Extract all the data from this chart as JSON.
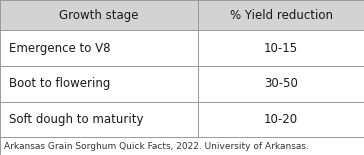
{
  "header": [
    "Growth stage",
    "% Yield reduction"
  ],
  "rows": [
    [
      "Emergence to V8",
      "10-15"
    ],
    [
      "Boot to flowering",
      "30-50"
    ],
    [
      "Soft dough to maturity",
      "10-20"
    ]
  ],
  "footnote": "Arkansas Grain Sorghum Quick Facts, 2022. University of Arkansas.",
  "header_bg": "#d3d3d3",
  "body_bg": "#ffffff",
  "border_color": "#999999",
  "text_color": "#1a1a1a",
  "col_split": 0.545,
  "header_fontsize": 8.5,
  "body_fontsize": 8.5,
  "footnote_fontsize": 6.5
}
